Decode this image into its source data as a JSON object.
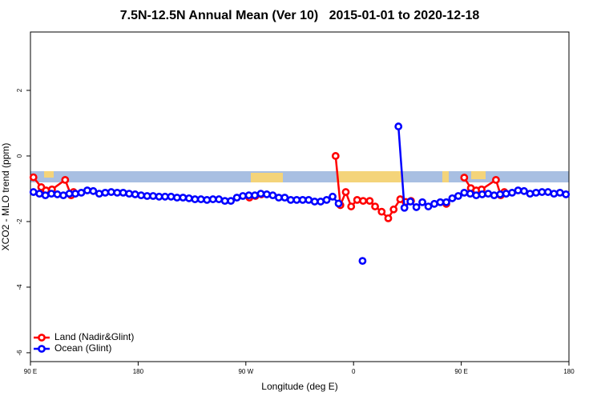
{
  "chart_data": {
    "type": "line",
    "title": "7.5N-12.5N Annual Mean (Ver 10)   2015-01-01 to 2020-12-18",
    "x_label": "Longitude (deg E)",
    "y_label": "XCO2 - MLO trend (ppm)",
    "xlim": [
      90,
      540
    ],
    "ylim": [
      -6.27,
      3.78
    ],
    "xticks": [
      {
        "value": 90,
        "label": "90 E"
      },
      180,
      {
        "value": 270,
        "label": "90 W"
      },
      {
        "value": 360,
        "label": "0"
      },
      {
        "value": 450,
        "label": "90 E"
      },
      {
        "value": 540,
        "label": "180"
      }
    ],
    "yticks": [
      2,
      0,
      -2,
      -4,
      -6
    ],
    "legend": "lower left",
    "series": [
      {
        "name": "Land (Nadir&Glint)",
        "color": "#ff0000",
        "x": [
          92.5,
          99,
          103,
          108,
          119,
          124,
          126,
          200,
          273,
          278,
          283,
          320,
          345,
          349,
          353.5,
          358,
          363,
          368,
          373.5,
          378,
          383.5,
          389,
          393.5,
          399,
          403.5,
          408,
          420,
          437.5,
          445,
          452.5,
          458,
          462.5,
          467,
          479,
          483,
          486
        ],
        "values": [
          -0.65,
          -0.95,
          -1.05,
          -1.02,
          -0.73,
          -1.2,
          -1.1,
          null,
          -1.27,
          -1.22,
          -1.17,
          null,
          0.0,
          -1.5,
          -1.1,
          -1.54,
          -1.34,
          -1.37,
          -1.37,
          -1.54,
          -1.7,
          -1.9,
          -1.63,
          -1.32,
          -1.4,
          -1.37,
          null,
          -1.46,
          null,
          -0.66,
          -0.98,
          -1.05,
          -1.02,
          -0.73,
          -1.2,
          -1.1
        ]
      },
      {
        "name": "Ocean (Glint)",
        "color": "#0000ff",
        "x": [
          92.5,
          97.5,
          102.5,
          107.5,
          112.5,
          117.5,
          122.5,
          127.5,
          132.5,
          137.5,
          142.5,
          147.5,
          152.5,
          157.5,
          162.5,
          167.5,
          172.5,
          177.5,
          182.5,
          187.5,
          192.5,
          197.5,
          202.5,
          207.5,
          212.5,
          217.5,
          222.5,
          227.5,
          232.5,
          237.5,
          242.5,
          247.5,
          252.5,
          257.5,
          262.5,
          267.5,
          272.5,
          277.5,
          282.5,
          287.5,
          292.5,
          297.5,
          302.5,
          307.5,
          312.5,
          317.5,
          322.5,
          327.5,
          332.5,
          337.5,
          342.5,
          347.5,
          352.5,
          357.5,
          362.5,
          367.5,
          372.5,
          377.5,
          382.5,
          387.5,
          392.5,
          397.5,
          402.5,
          407.5,
          412.5,
          417.5,
          422.5,
          427.5,
          432.5,
          437.5,
          442.5,
          447.5,
          452.5,
          457.5,
          462.5,
          467.5,
          472.5,
          477.5,
          482.5,
          487.5,
          492.5,
          497.5,
          502.5,
          507.5,
          512.5,
          517.5,
          522.5,
          527.5,
          532.5,
          537.5
        ],
        "values": [
          -1.1,
          -1.15,
          -1.2,
          -1.15,
          -1.17,
          -1.2,
          -1.15,
          -1.15,
          -1.12,
          -1.05,
          -1.07,
          -1.15,
          -1.12,
          -1.1,
          -1.12,
          -1.12,
          -1.15,
          -1.17,
          -1.2,
          -1.22,
          -1.22,
          -1.24,
          -1.24,
          -1.24,
          -1.27,
          -1.27,
          -1.29,
          -1.32,
          -1.32,
          -1.34,
          -1.32,
          -1.32,
          -1.37,
          -1.37,
          -1.27,
          -1.22,
          -1.2,
          -1.2,
          -1.15,
          -1.17,
          -1.2,
          -1.27,
          -1.27,
          -1.34,
          -1.34,
          -1.34,
          -1.34,
          -1.39,
          -1.39,
          -1.34,
          -1.24,
          -1.45,
          null,
          null,
          null,
          -3.2,
          null,
          null,
          null,
          null,
          null,
          0.9,
          -1.58,
          -1.39,
          -1.56,
          -1.41,
          -1.54,
          -1.46,
          -1.41,
          -1.41,
          -1.29,
          -1.22,
          -1.12,
          -1.15,
          -1.2,
          -1.17,
          -1.15,
          -1.2,
          -1.17,
          -1.15,
          -1.12,
          -1.05,
          -1.07,
          -1.15,
          -1.12,
          -1.1,
          -1.1,
          -1.15,
          -1.12,
          -1.17
        ]
      }
    ]
  }
}
